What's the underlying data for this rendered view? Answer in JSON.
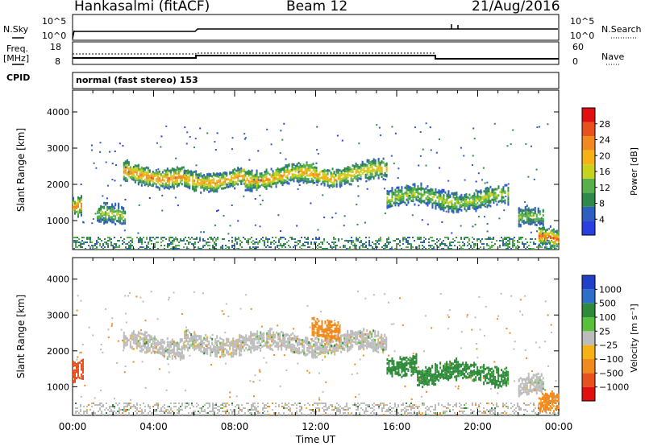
{
  "header": {
    "station": "Hankasalmi (fitACF)",
    "beam": "Beam 12",
    "date": "21/Aug/2016"
  },
  "noise_panel": {
    "left_label": "N.Sky",
    "right_label": "N.Search",
    "left_ticks": [
      "10^5",
      "10^0"
    ],
    "right_ticks": [
      "10^5",
      "10^0"
    ]
  },
  "freq_panel": {
    "left_label_line1": "Freq.",
    "left_label_line2": "[MHz]",
    "left_ticks": [
      "18",
      "8"
    ],
    "right_label": "Nave",
    "right_ticks": [
      "60",
      "0"
    ]
  },
  "cpid_panel": {
    "label": "CPID",
    "text": "normal (fast stereo) 153"
  },
  "colors": {
    "power": [
      "#2a3fe0",
      "#2e5fbf",
      "#2e8a4a",
      "#58b04a",
      "#c8d21e",
      "#f6b214",
      "#f08a1e",
      "#e8501e",
      "#e01010"
    ],
    "velocity": [
      "#2040c8",
      "#2e6ec8",
      "#2e8a3a",
      "#58c03a",
      "#bcbcbc",
      "#f6b214",
      "#f08a1e",
      "#e8501e",
      "#e01010"
    ]
  },
  "chart_data": [
    {
      "type": "heatmap",
      "quantity": "power",
      "ylabel": "Slant Range [km]",
      "ylim": [
        200,
        4600
      ],
      "yticks": [
        1000,
        2000,
        3000,
        4000
      ],
      "xlim": [
        "00:00",
        "24:00"
      ],
      "colorbar_label": "Power [dB]",
      "colorbar_ticks": [
        4,
        8,
        12,
        16,
        20,
        24,
        28
      ],
      "colorbar_range": [
        0,
        32
      ],
      "echo_bands": [
        {
          "t_start": 0.0,
          "t_end": 0.4,
          "range_km": 1400,
          "level": 22
        },
        {
          "t_start": 1.2,
          "t_end": 2.6,
          "range_km": 1120,
          "level": 14
        },
        {
          "t_start": 2.5,
          "t_end": 5.5,
          "range_km": 2300,
          "level": 22
        },
        {
          "t_start": 5.5,
          "t_end": 8.5,
          "range_km": 2200,
          "level": 20
        },
        {
          "t_start": 8.5,
          "t_end": 13.0,
          "range_km": 2250,
          "level": 20
        },
        {
          "t_start": 13.0,
          "t_end": 15.5,
          "range_km": 2350,
          "level": 18
        },
        {
          "t_start": 15.5,
          "t_end": 21.5,
          "range_km": 1650,
          "level": 14
        },
        {
          "t_start": 22.0,
          "t_end": 23.2,
          "range_km": 1050,
          "level": 12
        },
        {
          "t_start": 23.0,
          "t_end": 24.0,
          "range_km": 500,
          "level": 24
        }
      ]
    },
    {
      "type": "heatmap",
      "quantity": "velocity",
      "ylabel": "Slant Range [km]",
      "ylim": [
        200,
        4600
      ],
      "yticks": [
        1000,
        2000,
        3000,
        4000
      ],
      "xlabel": "Time UT",
      "xlim": [
        "00:00",
        "24:00"
      ],
      "xticks": [
        "00:00",
        "04:00",
        "08:00",
        "12:00",
        "16:00",
        "20:00",
        "00:00"
      ],
      "colorbar_label": "Velocity [m s⁻¹]",
      "colorbar_ticks": [
        "1000",
        "500",
        "100",
        "25",
        "−25",
        "−100",
        "−500",
        "−1000"
      ],
      "echo_bands": [
        {
          "t_start": 0.0,
          "t_end": 0.5,
          "range_km": 1450,
          "velocity": -500
        },
        {
          "t_start": 2.5,
          "t_end": 5.5,
          "range_km": 2200,
          "velocity": 0
        },
        {
          "t_start": 5.5,
          "t_end": 15.5,
          "range_km": 2250,
          "velocity": 0
        },
        {
          "t_start": 11.8,
          "t_end": 13.2,
          "range_km": 2700,
          "velocity": -100
        },
        {
          "t_start": 15.5,
          "t_end": 17.0,
          "range_km": 1700,
          "velocity": 100
        },
        {
          "t_start": 17.0,
          "t_end": 21.5,
          "range_km": 1400,
          "velocity": 100
        },
        {
          "t_start": 22.0,
          "t_end": 23.2,
          "range_km": 1050,
          "velocity": 0
        },
        {
          "t_start": 23.0,
          "t_end": 24.0,
          "range_km": 500,
          "velocity": -100
        }
      ]
    }
  ]
}
